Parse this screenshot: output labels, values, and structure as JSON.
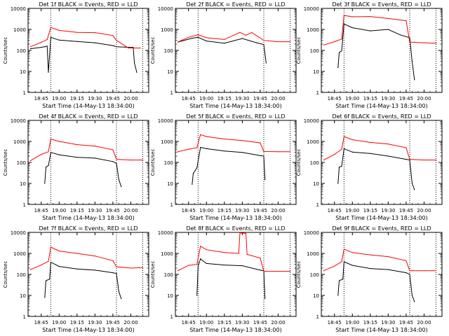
{
  "colors": {
    "events": "#000000",
    "lld": "#ff0000",
    "axes": "#000000",
    "background": "#ffffff"
  },
  "common": {
    "ylabel": "Counts/sec",
    "xlabel": "Start Time (14-May-13 18:34:00)",
    "ytick_labels": [
      "1",
      "10",
      "100",
      "1000",
      "10000"
    ],
    "xtick_labels": [
      "18:45",
      "19:00",
      "19:15",
      "19:30",
      "19:45",
      "20:00"
    ]
  },
  "chart_data": [
    {
      "type": "line",
      "title": "Det 1f  BLACK = Events, RED = LLD",
      "xlim": [
        "18:34",
        "20:15"
      ],
      "ylim": [
        1,
        10000
      ],
      "yscale": "log",
      "markers": [
        "18:53",
        "19:48",
        "20:10"
      ],
      "series": [
        {
          "color": "#000000",
          "points": [
            [
              "18:36",
              120
            ],
            [
              "18:45",
              140
            ],
            [
              "18:48",
              150
            ],
            [
              "18:50",
              160
            ],
            [
              "18:51",
              9
            ],
            [
              "18:53",
              420
            ],
            [
              "19:00",
              310
            ],
            [
              "19:15",
              265
            ],
            [
              "19:30",
              230
            ],
            [
              "19:45",
              170
            ],
            [
              "19:48",
              150
            ],
            [
              "19:58",
              140
            ],
            [
              "20:02",
              140
            ],
            [
              "20:03",
              25
            ],
            [
              "20:05",
              9
            ]
          ]
        },
        {
          "color": "#ff0000",
          "points": [
            [
              "18:36",
              150
            ],
            [
              "18:45",
              240
            ],
            [
              "18:50",
              330
            ],
            [
              "18:53",
              1250
            ],
            [
              "19:00",
              900
            ],
            [
              "19:15",
              720
            ],
            [
              "19:30",
              700
            ],
            [
              "19:45",
              510
            ],
            [
              "19:48",
              300
            ],
            [
              "19:58",
              130
            ],
            [
              "20:08",
              130
            ]
          ]
        }
      ]
    },
    {
      "type": "line",
      "title": "Det 2f  BLACK = Events, RED = LLD",
      "xlim": [
        "18:34",
        "20:15"
      ],
      "ylim": [
        1,
        10000
      ],
      "yscale": "log",
      "markers": [
        "18:53",
        "19:48",
        "20:10"
      ],
      "series": [
        {
          "color": "#000000",
          "points": [
            [
              "18:36",
              250
            ],
            [
              "18:48",
              380
            ],
            [
              "18:53",
              420
            ],
            [
              "19:00",
              280
            ],
            [
              "19:15",
              220
            ],
            [
              "19:30",
              370
            ],
            [
              "19:42",
              230
            ],
            [
              "19:48",
              190
            ],
            [
              "19:50",
              25
            ]
          ]
        },
        {
          "color": "#ff0000",
          "points": [
            [
              "18:36",
              250
            ],
            [
              "18:45",
              420
            ],
            [
              "18:53",
              560
            ],
            [
              "19:00",
              400
            ],
            [
              "19:15",
              330
            ],
            [
              "19:28",
              720
            ],
            [
              "19:33",
              530
            ],
            [
              "19:38",
              700
            ],
            [
              "19:48",
              300
            ],
            [
              "20:00",
              260
            ],
            [
              "20:10",
              260
            ]
          ]
        }
      ]
    },
    {
      "type": "line",
      "title": "Det 3f  BLACK = Events, RED = LLD",
      "xlim": [
        "18:34",
        "20:15"
      ],
      "ylim": [
        1,
        10000
      ],
      "yscale": "log",
      "markers": [
        "18:53",
        "19:48",
        "20:10"
      ],
      "series": [
        {
          "color": "#000000",
          "points": [
            [
              "18:48",
              15
            ],
            [
              "18:49",
              80
            ],
            [
              "18:51",
              95
            ],
            [
              "18:53",
              1800
            ],
            [
              "19:00",
              1200
            ],
            [
              "19:15",
              850
            ],
            [
              "19:30",
              1000
            ],
            [
              "19:40",
              550
            ],
            [
              "19:48",
              400
            ],
            [
              "19:50",
              30
            ],
            [
              "19:52",
              4
            ]
          ]
        },
        {
          "color": "#ff0000",
          "points": [
            [
              "18:36",
              180
            ],
            [
              "18:45",
              260
            ],
            [
              "18:51",
              350
            ],
            [
              "18:53",
              4600
            ],
            [
              "19:00",
              4000
            ],
            [
              "19:15",
              4100
            ],
            [
              "19:30",
              3300
            ],
            [
              "19:45",
              2600
            ],
            [
              "19:48",
              250
            ],
            [
              "20:00",
              230
            ],
            [
              "20:10",
              220
            ]
          ]
        }
      ]
    },
    {
      "type": "line",
      "title": "Det 4f  BLACK = Events, RED = LLD",
      "xlim": [
        "18:34",
        "20:15"
      ],
      "ylim": [
        1,
        10000
      ],
      "yscale": "log",
      "markers": [
        "18:53",
        "19:48",
        "20:10"
      ],
      "series": [
        {
          "color": "#000000",
          "points": [
            [
              "18:48",
              10
            ],
            [
              "18:49",
              60
            ],
            [
              "18:51",
              70
            ],
            [
              "18:53",
              300
            ],
            [
              "19:00",
              230
            ],
            [
              "19:15",
              175
            ],
            [
              "19:30",
              160
            ],
            [
              "19:45",
              110
            ],
            [
              "19:48",
              90
            ],
            [
              "19:50",
              15
            ],
            [
              "19:52",
              7
            ]
          ]
        },
        {
          "color": "#ff0000",
          "points": [
            [
              "18:36",
              120
            ],
            [
              "18:45",
              240
            ],
            [
              "18:51",
              320
            ],
            [
              "18:53",
              1300
            ],
            [
              "19:00",
              1000
            ],
            [
              "19:15",
              700
            ],
            [
              "19:30",
              600
            ],
            [
              "19:45",
              400
            ],
            [
              "19:48",
              140
            ],
            [
              "20:00",
              130
            ],
            [
              "20:10",
              130
            ]
          ]
        }
      ]
    },
    {
      "type": "line",
      "title": "Det 5f  BLACK = Events, RED = LLD",
      "xlim": [
        "18:34",
        "20:15"
      ],
      "ylim": [
        1,
        10000
      ],
      "yscale": "log",
      "markers": [
        "18:53",
        "19:48",
        "20:10"
      ],
      "series": [
        {
          "color": "#000000",
          "points": [
            [
              "18:48",
              9
            ],
            [
              "18:49",
              30
            ],
            [
              "18:52",
              55
            ],
            [
              "18:55",
              520
            ],
            [
              "19:00",
              450
            ],
            [
              "19:15",
              350
            ],
            [
              "19:30",
              300
            ],
            [
              "19:45",
              210
            ],
            [
              "19:48",
              200
            ],
            [
              "19:49",
              15
            ]
          ]
        },
        {
          "color": "#ff0000",
          "points": [
            [
              "18:36",
              320
            ],
            [
              "18:45",
              420
            ],
            [
              "18:52",
              500
            ],
            [
              "18:55",
              2100
            ],
            [
              "19:00",
              1700
            ],
            [
              "19:15",
              1300
            ],
            [
              "19:30",
              1100
            ],
            [
              "19:45",
              850
            ],
            [
              "19:48",
              330
            ],
            [
              "20:00",
              320
            ],
            [
              "20:10",
              320
            ]
          ]
        }
      ]
    },
    {
      "type": "line",
      "title": "Det 6f  BLACK = Events, RED = LLD",
      "xlim": [
        "18:34",
        "20:15"
      ],
      "ylim": [
        1,
        10000
      ],
      "yscale": "log",
      "markers": [
        "18:53",
        "19:48",
        "20:10"
      ],
      "series": [
        {
          "color": "#000000",
          "points": [
            [
              "18:48",
              10
            ],
            [
              "18:49",
              60
            ],
            [
              "18:51",
              65
            ],
            [
              "18:53",
              450
            ],
            [
              "19:00",
              310
            ],
            [
              "19:15",
              265
            ],
            [
              "19:30",
              200
            ],
            [
              "19:45",
              140
            ],
            [
              "19:48",
              130
            ],
            [
              "19:50",
              10
            ],
            [
              "19:52",
              5
            ]
          ]
        },
        {
          "color": "#ff0000",
          "points": [
            [
              "18:36",
              130
            ],
            [
              "18:45",
              240
            ],
            [
              "18:51",
              420
            ],
            [
              "18:53",
              1700
            ],
            [
              "19:00",
              1200
            ],
            [
              "19:15",
              900
            ],
            [
              "19:30",
              750
            ],
            [
              "19:45",
              500
            ],
            [
              "19:48",
              140
            ],
            [
              "20:00",
              130
            ],
            [
              "20:10",
              130
            ]
          ]
        }
      ]
    },
    {
      "type": "line",
      "title": "Det 7f  BLACK = Events, RED = LLD",
      "xlim": [
        "18:34",
        "20:15"
      ],
      "ylim": [
        1,
        10000
      ],
      "yscale": "log",
      "markers": [
        "18:53",
        "19:48",
        "20:10"
      ],
      "series": [
        {
          "color": "#000000",
          "points": [
            [
              "18:48",
              8
            ],
            [
              "18:49",
              50
            ],
            [
              "18:52",
              60
            ],
            [
              "18:53",
              380
            ],
            [
              "19:00",
              240
            ],
            [
              "19:15",
              180
            ],
            [
              "19:30",
              160
            ],
            [
              "19:45",
              120
            ],
            [
              "19:48",
              110
            ],
            [
              "19:50",
              15
            ],
            [
              "19:52",
              7
            ]
          ]
        },
        {
          "color": "#ff0000",
          "points": [
            [
              "18:36",
              170
            ],
            [
              "18:45",
              280
            ],
            [
              "18:51",
              420
            ],
            [
              "18:53",
              2000
            ],
            [
              "19:00",
              1300
            ],
            [
              "19:15",
              1000
            ],
            [
              "19:30",
              750
            ],
            [
              "19:45",
              450
            ],
            [
              "19:48",
              230
            ],
            [
              "20:00",
              200
            ],
            [
              "20:10",
              210
            ]
          ]
        }
      ]
    },
    {
      "type": "line",
      "title": "Det 8f  BLACK = Events, RED = LLD",
      "xlim": [
        "18:34",
        "20:15"
      ],
      "ylim": [
        1,
        10000
      ],
      "yscale": "log",
      "markers": [
        "18:53",
        "19:48",
        "20:10"
      ],
      "series": [
        {
          "color": "#000000",
          "points": [
            [
              "18:52",
              10
            ],
            [
              "18:53",
              250
            ],
            [
              "18:55",
              550
            ],
            [
              "19:00",
              330
            ],
            [
              "19:15",
              280
            ],
            [
              "19:30",
              260
            ],
            [
              "19:45",
              160
            ],
            [
              "19:48",
              150
            ],
            [
              "19:49",
              7
            ]
          ]
        },
        {
          "color": "#ff0000",
          "points": [
            [
              "18:36",
              150
            ],
            [
              "18:45",
              270
            ],
            [
              "18:52",
              300
            ],
            [
              "18:55",
              2200
            ],
            [
              "19:00",
              1500
            ],
            [
              "19:15",
              1100
            ],
            [
              "19:27",
              1000
            ],
            [
              "19:28",
              9500
            ],
            [
              "19:33",
              9000
            ],
            [
              "19:34",
              900
            ],
            [
              "19:45",
              600
            ],
            [
              "19:48",
              140
            ],
            [
              "20:00",
              140
            ],
            [
              "20:10",
              140
            ]
          ]
        }
      ]
    },
    {
      "type": "line",
      "title": "Det 9f  BLACK = Events, RED = LLD",
      "xlim": [
        "18:34",
        "20:15"
      ],
      "ylim": [
        1,
        10000
      ],
      "yscale": "log",
      "markers": [
        "18:53",
        "19:48",
        "20:10"
      ],
      "series": [
        {
          "color": "#000000",
          "points": [
            [
              "18:48",
              10
            ],
            [
              "18:49",
              50
            ],
            [
              "18:52",
              60
            ],
            [
              "18:53",
              400
            ],
            [
              "19:00",
              270
            ],
            [
              "19:15",
              190
            ],
            [
              "19:30",
              170
            ],
            [
              "19:45",
              120
            ],
            [
              "19:48",
              100
            ],
            [
              "19:50",
              10
            ],
            [
              "19:52",
              5
            ]
          ]
        },
        {
          "color": "#ff0000",
          "points": [
            [
              "18:36",
              150
            ],
            [
              "18:45",
              250
            ],
            [
              "18:51",
              400
            ],
            [
              "18:53",
              1600
            ],
            [
              "19:00",
              1100
            ],
            [
              "19:15",
              850
            ],
            [
              "19:30",
              700
            ],
            [
              "19:45",
              450
            ],
            [
              "19:48",
              150
            ],
            [
              "20:00",
              150
            ],
            [
              "20:10",
              150
            ]
          ]
        }
      ]
    }
  ]
}
